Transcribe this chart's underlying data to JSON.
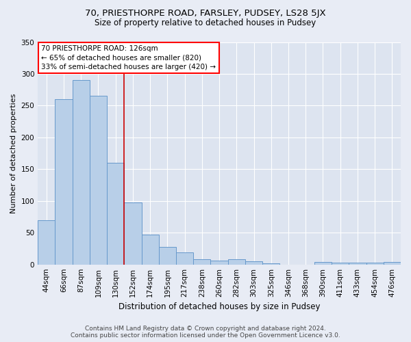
{
  "title1": "70, PRIESTHORPE ROAD, FARSLEY, PUDSEY, LS28 5JX",
  "title2": "Size of property relative to detached houses in Pudsey",
  "xlabel": "Distribution of detached houses by size in Pudsey",
  "ylabel": "Number of detached properties",
  "categories": [
    "44sqm",
    "66sqm",
    "87sqm",
    "109sqm",
    "130sqm",
    "152sqm",
    "174sqm",
    "195sqm",
    "217sqm",
    "238sqm",
    "260sqm",
    "282sqm",
    "303sqm",
    "325sqm",
    "346sqm",
    "368sqm",
    "390sqm",
    "411sqm",
    "433sqm",
    "454sqm",
    "476sqm"
  ],
  "values": [
    70,
    260,
    290,
    265,
    160,
    98,
    47,
    28,
    19,
    8,
    6,
    8,
    5,
    2,
    0,
    0,
    4,
    3,
    3,
    3,
    4
  ],
  "bar_color": "#b8cfe8",
  "bar_edge_color": "#6699cc",
  "vline_x": 4.5,
  "vline_color": "#cc0000",
  "annotation_text": "70 PRIESTHORPE ROAD: 126sqm\n← 65% of detached houses are smaller (820)\n33% of semi-detached houses are larger (420) →",
  "ylim": [
    0,
    350
  ],
  "yticks": [
    0,
    50,
    100,
    150,
    200,
    250,
    300,
    350
  ],
  "footer_line1": "Contains HM Land Registry data © Crown copyright and database right 2024.",
  "footer_line2": "Contains public sector information licensed under the Open Government Licence v3.0.",
  "bg_color": "#e8ecf5",
  "plot_bg_color": "#dde4f0",
  "grid_color": "#ffffff",
  "title1_fontsize": 9.5,
  "title2_fontsize": 8.5,
  "xlabel_fontsize": 8.5,
  "ylabel_fontsize": 8,
  "tick_fontsize": 7.5,
  "annot_fontsize": 7.5,
  "footer_fontsize": 6.5
}
